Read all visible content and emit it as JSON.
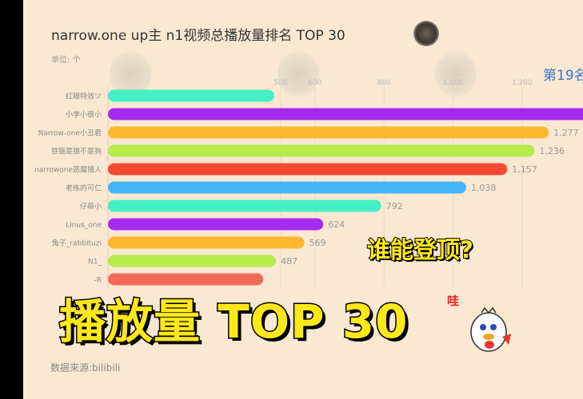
{
  "title": "narrow.one up主 n1视频总播放量排名 TOP 30",
  "unit_label": "单位: 个",
  "rank_label": "第19名",
  "source": "数据来源:bilibili",
  "overlay": {
    "headline": "播放量 TOP 30",
    "question": "谁能登顶?",
    "exclaim": "哇"
  },
  "icons": {
    "title_avatar": "avatar-image",
    "mascot": "mascot-sticker"
  },
  "chart_data": {
    "type": "bar",
    "orientation": "horizontal",
    "x_ticks": [
      "500",
      "600",
      "800",
      "1,000",
      "1,200"
    ],
    "categories": [
      "红眼特效ツ",
      "小李小很小",
      "Narrow-one小丑君",
      "铁镐是狼不是狗",
      "narrowone恶魔猎人",
      "老练的可仁",
      "仔萌小",
      "Linus_one",
      "兔子_rabbituzi",
      "N1_",
      "-R"
    ],
    "values": [
      482,
      1400,
      1277,
      1236,
      1157,
      1038,
      792,
      624,
      569,
      487,
      450
    ],
    "value_labels": [
      "",
      "",
      "1,277",
      "1,236",
      "1,157",
      "1,038",
      "792",
      "624",
      "569",
      "487",
      ""
    ],
    "colors": [
      "#45f0c4",
      "#a52cef",
      "#fbb82e",
      "#b7ec4b",
      "#f74a35",
      "#45b4f6",
      "#45f0c4",
      "#a52cef",
      "#fbb82e",
      "#b7ec4b",
      "#f26a55"
    ],
    "grid": true
  }
}
